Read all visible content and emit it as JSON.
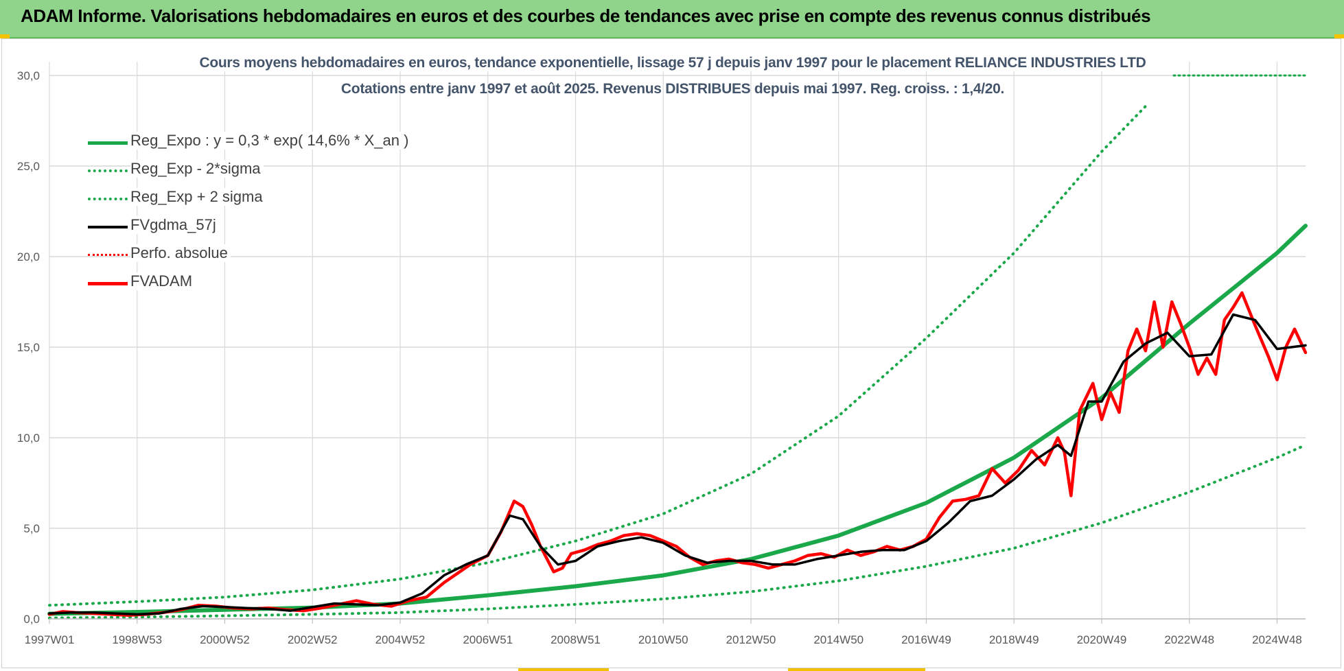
{
  "banner": {
    "title": "ADAM Informe. Valorisations hebdomadaires en euros et des courbes de tendances avec prise en compte des revenus connus distribués"
  },
  "colors": {
    "banner_bg": "#8fd48a",
    "reg_expo": "#1aa84a",
    "sigma_bands": "#1aa84a",
    "fvgdma": "#000000",
    "fvadam": "#ff0000",
    "title_text": "#44546a",
    "grid": "#d9d9d9"
  },
  "chart_data": {
    "type": "line",
    "title": "Cours moyens hebdomadaires en euros, tendance exponentielle, lissage 57 j depuis janv 1997  pour le placement RELIANCE INDUSTRIES LTD",
    "subtitle": "Cotations entre janv 1997 et août 2025. Revenus DISTRIBUES depuis mai 1997. Reg. croiss. : 1,4/20.",
    "xlabel": "",
    "ylabel": "",
    "ylim": [
      0,
      30
    ],
    "xlim": [
      1997.0,
      2025.65
    ],
    "y_ticks": [
      "0,0",
      "5,0",
      "10,0",
      "15,0",
      "20,0",
      "25,0",
      "30,0"
    ],
    "x_ticks": [
      {
        "label": "1997W01",
        "x": 1997.0
      },
      {
        "label": "1998W53",
        "x": 1999.0
      },
      {
        "label": "2000W52",
        "x": 2001.0
      },
      {
        "label": "2002W52",
        "x": 2003.0
      },
      {
        "label": "2004W52",
        "x": 2005.0
      },
      {
        "label": "2006W51",
        "x": 2007.0
      },
      {
        "label": "2008W51",
        "x": 2009.0
      },
      {
        "label": "2010W50",
        "x": 2011.0
      },
      {
        "label": "2012W50",
        "x": 2013.0
      },
      {
        "label": "2014W50",
        "x": 2015.0
      },
      {
        "label": "2016W49",
        "x": 2017.0
      },
      {
        "label": "2018W49",
        "x": 2019.0
      },
      {
        "label": "2020W49",
        "x": 2021.0
      },
      {
        "label": "2022W48",
        "x": 2023.0
      },
      {
        "label": "2024W48",
        "x": 2025.0
      }
    ],
    "grid": true,
    "legend_position": "top-left",
    "legend": [
      {
        "label": "Reg_Expo : y = 0,3 * exp( 14,6% *  X_an )",
        "style": "solid-thick",
        "color": "#1aa84a"
      },
      {
        "label": "Reg_Exp - 2*sigma",
        "style": "dotted",
        "color": "#1aa84a"
      },
      {
        "label": "Reg_Exp + 2 sigma",
        "style": "dotted",
        "color": "#1aa84a"
      },
      {
        "label": "FVgdma_57j",
        "style": "solid",
        "color": "#000000"
      },
      {
        "label": "Perfo. absolue",
        "style": "dotted",
        "color": "#ff0000"
      },
      {
        "label": "FVADAM",
        "style": "solid-thick",
        "color": "#ff0000"
      }
    ],
    "series": [
      {
        "name": "Reg_Expo : y = 0,3 * exp( 14,6% *  X_an )",
        "x": [
          1997.0,
          1999.0,
          2001.0,
          2003.0,
          2005.0,
          2007.0,
          2009.0,
          2011.0,
          2013.0,
          2015.0,
          2017.0,
          2019.0,
          2021.0,
          2023.0,
          2025.0,
          2025.65
        ],
        "values": [
          0.28,
          0.38,
          0.5,
          0.62,
          0.85,
          1.3,
          1.8,
          2.4,
          3.3,
          4.6,
          6.4,
          8.9,
          12.2,
          16.3,
          20.2,
          21.7
        ]
      },
      {
        "name": "Reg_Exp - 2*sigma",
        "x": [
          1997.0,
          1999.0,
          2001.0,
          2003.0,
          2005.0,
          2007.0,
          2009.0,
          2011.0,
          2013.0,
          2015.0,
          2017.0,
          2019.0,
          2021.0,
          2023.0,
          2025.0,
          2025.65
        ],
        "values": [
          0.05,
          0.1,
          0.17,
          0.25,
          0.35,
          0.55,
          0.8,
          1.1,
          1.5,
          2.1,
          2.9,
          3.9,
          5.3,
          7.0,
          8.9,
          9.6
        ]
      },
      {
        "name": "Reg_Exp + 2 sigma",
        "x": [
          1997.0,
          1999.0,
          2001.0,
          2003.0,
          2005.0,
          2007.0,
          2009.0,
          2011.0,
          2013.0,
          2015.0,
          2017.0,
          2019.0,
          2021.0,
          2022.0
        ],
        "values": [
          0.75,
          0.95,
          1.2,
          1.6,
          2.2,
          3.1,
          4.3,
          5.8,
          8.0,
          11.2,
          15.5,
          20.2,
          25.8,
          28.3
        ]
      },
      {
        "name": "FVgdma_57j",
        "x": [
          1997.0,
          1997.5,
          1998.0,
          1998.5,
          1999.0,
          1999.5,
          2000.0,
          2000.5,
          2001.0,
          2001.5,
          2002.0,
          2002.5,
          2003.0,
          2003.5,
          2004.0,
          2004.5,
          2005.0,
          2005.5,
          2006.0,
          2006.5,
          2007.0,
          2007.5,
          2007.8,
          2008.2,
          2008.6,
          2009.0,
          2009.5,
          2010.0,
          2010.5,
          2011.0,
          2011.5,
          2012.0,
          2012.5,
          2013.0,
          2013.5,
          2014.0,
          2014.5,
          2015.0,
          2015.5,
          2016.0,
          2016.5,
          2017.0,
          2017.5,
          2018.0,
          2018.5,
          2019.0,
          2019.5,
          2020.0,
          2020.3,
          2020.7,
          2021.0,
          2021.5,
          2022.0,
          2022.5,
          2023.0,
          2023.5,
          2024.0,
          2024.5,
          2025.0,
          2025.65
        ],
        "values": [
          0.3,
          0.35,
          0.35,
          0.3,
          0.25,
          0.3,
          0.55,
          0.7,
          0.65,
          0.6,
          0.55,
          0.45,
          0.65,
          0.85,
          0.8,
          0.75,
          0.9,
          1.4,
          2.4,
          3.0,
          3.5,
          5.7,
          5.5,
          4.0,
          3.0,
          3.2,
          4.0,
          4.3,
          4.5,
          4.2,
          3.5,
          3.1,
          3.2,
          3.2,
          3.0,
          3.0,
          3.3,
          3.5,
          3.7,
          3.8,
          3.8,
          4.3,
          5.3,
          6.5,
          6.8,
          7.7,
          8.8,
          9.6,
          9.0,
          12.0,
          12.0,
          14.2,
          15.2,
          15.8,
          14.5,
          14.6,
          16.8,
          16.5,
          14.9,
          15.1
        ]
      },
      {
        "name": "FVADAM",
        "x": [
          1997.0,
          1997.3,
          1997.6,
          1998.0,
          1998.4,
          1998.8,
          1999.2,
          1999.6,
          2000.0,
          2000.4,
          2000.8,
          2001.2,
          2001.6,
          2002.0,
          2002.4,
          2002.8,
          2003.2,
          2003.6,
          2004.0,
          2004.4,
          2004.8,
          2005.2,
          2005.6,
          2006.0,
          2006.3,
          2006.6,
          2007.0,
          2007.3,
          2007.6,
          2007.8,
          2008.0,
          2008.2,
          2008.5,
          2008.7,
          2008.9,
          2009.2,
          2009.5,
          2009.8,
          2010.1,
          2010.4,
          2010.7,
          2011.0,
          2011.3,
          2011.6,
          2011.9,
          2012.2,
          2012.5,
          2012.8,
          2013.1,
          2013.4,
          2013.7,
          2014.0,
          2014.3,
          2014.6,
          2014.9,
          2015.2,
          2015.5,
          2015.8,
          2016.1,
          2016.4,
          2016.7,
          2017.0,
          2017.3,
          2017.6,
          2017.9,
          2018.2,
          2018.5,
          2018.8,
          2019.1,
          2019.4,
          2019.7,
          2020.0,
          2020.15,
          2020.3,
          2020.5,
          2020.8,
          2021.0,
          2021.2,
          2021.4,
          2021.6,
          2021.8,
          2022.0,
          2022.2,
          2022.4,
          2022.6,
          2022.8,
          2023.0,
          2023.2,
          2023.4,
          2023.6,
          2023.8,
          2024.0,
          2024.2,
          2024.5,
          2024.8,
          2025.0,
          2025.2,
          2025.4,
          2025.65
        ],
        "values": [
          0.25,
          0.4,
          0.35,
          0.3,
          0.25,
          0.2,
          0.25,
          0.35,
          0.5,
          0.75,
          0.7,
          0.6,
          0.55,
          0.6,
          0.5,
          0.45,
          0.6,
          0.8,
          1.0,
          0.8,
          0.7,
          1.0,
          1.2,
          2.0,
          2.5,
          3.0,
          3.5,
          4.8,
          6.5,
          6.2,
          5.2,
          4.0,
          2.6,
          2.8,
          3.6,
          3.8,
          4.1,
          4.3,
          4.6,
          4.7,
          4.6,
          4.3,
          4.0,
          3.4,
          3.0,
          3.2,
          3.3,
          3.1,
          3.0,
          2.8,
          3.0,
          3.2,
          3.5,
          3.6,
          3.4,
          3.8,
          3.5,
          3.7,
          4.0,
          3.8,
          4.0,
          4.4,
          5.6,
          6.5,
          6.6,
          6.8,
          8.3,
          7.5,
          8.2,
          9.3,
          8.5,
          10.0,
          9.2,
          6.8,
          11.5,
          13.0,
          11.0,
          12.5,
          11.4,
          14.8,
          16.0,
          14.8,
          17.5,
          15.0,
          17.5,
          16.3,
          15.0,
          13.5,
          14.4,
          13.5,
          16.5,
          17.2,
          18.0,
          16.2,
          14.5,
          13.2,
          15.0,
          16.0,
          14.7
        ]
      }
    ]
  }
}
